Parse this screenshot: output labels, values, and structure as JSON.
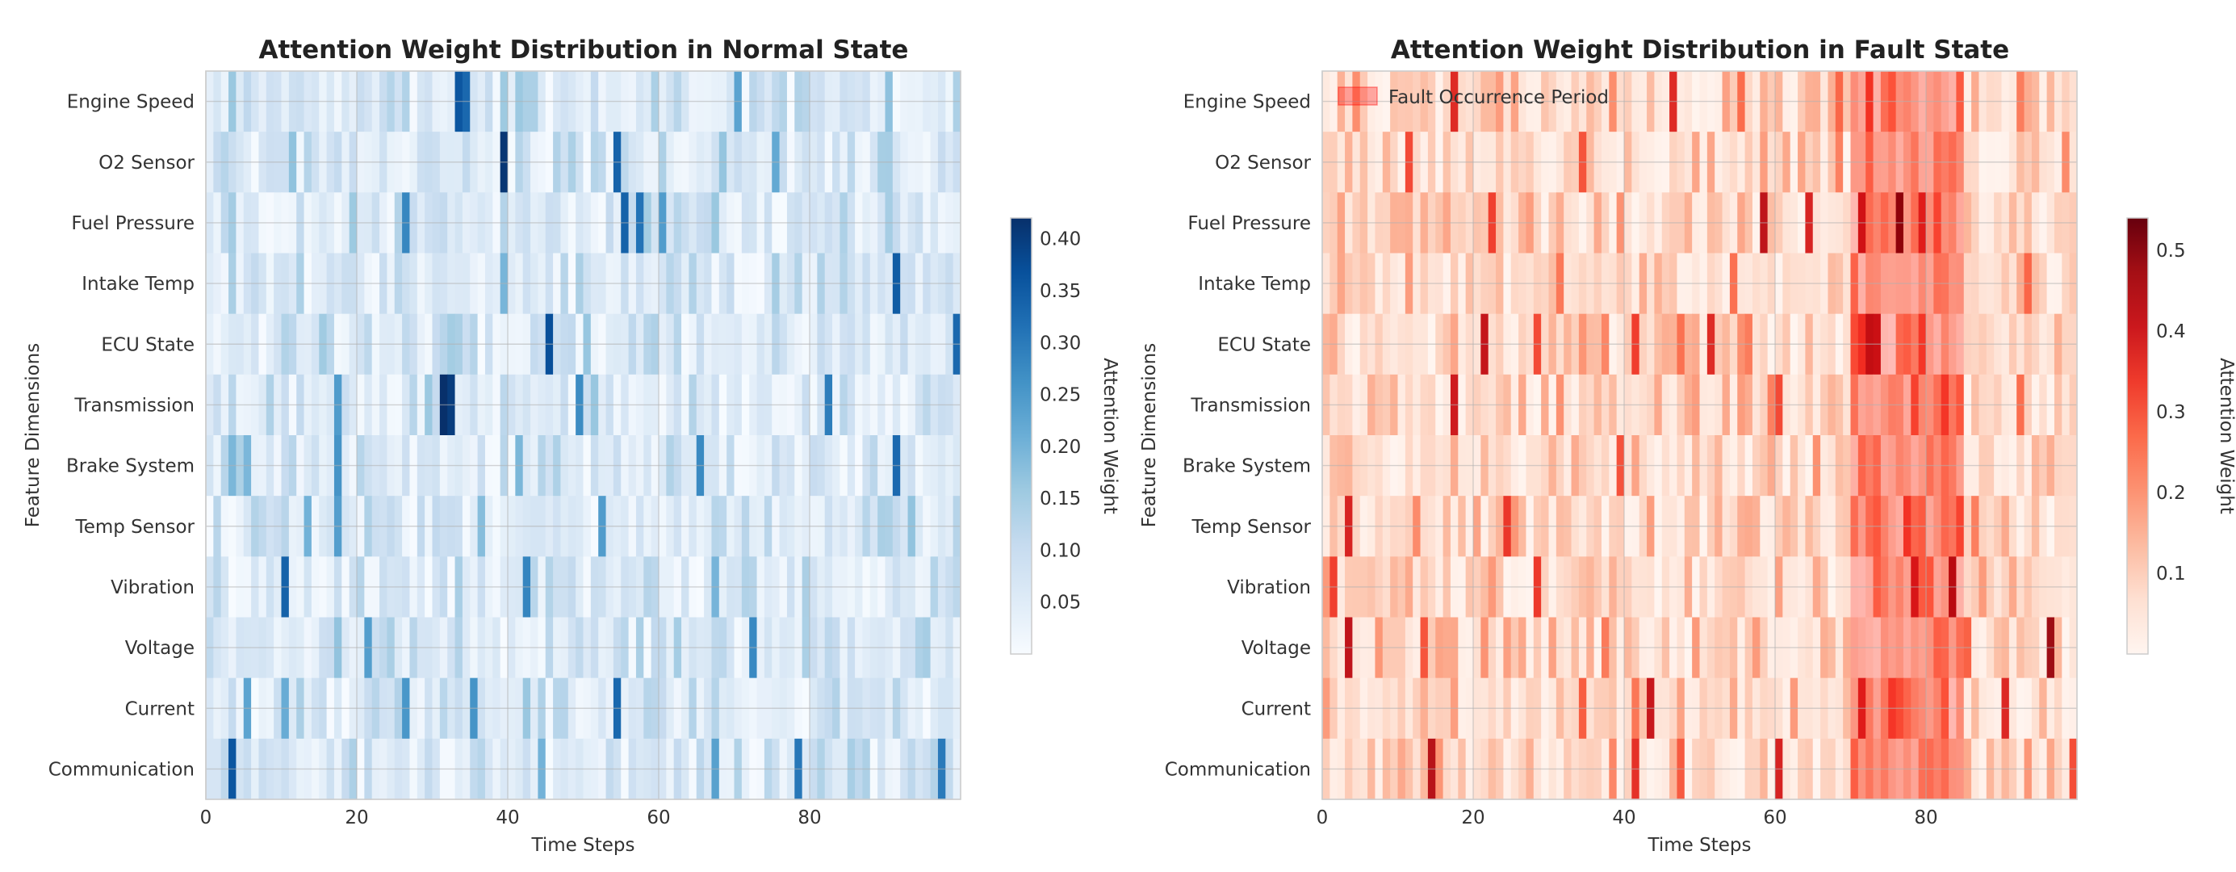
{
  "chart_data": [
    {
      "type": "heatmap",
      "title": "Attention Weight Distribution in Normal State",
      "xlabel": "Time Steps",
      "ylabel": "Feature Dimensions",
      "x_range": [
        0,
        100
      ],
      "x_ticks": [
        0,
        20,
        40,
        60,
        80
      ],
      "categories": [
        "Engine Speed",
        "O2 Sensor",
        "Fuel Pressure",
        "Intake Temp",
        "ECU State",
        "Transmission",
        "Brake System",
        "Temp Sensor",
        "Vibration",
        "Voltage",
        "Current",
        "Communication"
      ],
      "colormap": "Blues",
      "colorbar": {
        "label": "Attention Weight",
        "range": [
          0.0,
          0.42
        ],
        "ticks": [
          0.05,
          0.1,
          0.15,
          0.2,
          0.25,
          0.3,
          0.35,
          0.4
        ],
        "tick_labels": [
          "0.05",
          "0.10",
          "0.15",
          "0.20",
          "0.25",
          "0.30",
          "0.35",
          "0.40"
        ]
      },
      "color_stops": [
        "#f7fbff",
        "#deebf7",
        "#c6dbef",
        "#9ecae1",
        "#6baed6",
        "#4292c6",
        "#2171b5",
        "#08519c",
        "#08306b"
      ],
      "seed": 7,
      "base_level": 0.07,
      "hotspots": [
        {
          "row": 0,
          "col": 33,
          "value": 0.36
        },
        {
          "row": 0,
          "col": 34,
          "value": 0.33
        },
        {
          "row": 1,
          "col": 39,
          "value": 0.41
        },
        {
          "row": 2,
          "col": 55,
          "value": 0.34
        },
        {
          "row": 2,
          "col": 26,
          "value": 0.28
        },
        {
          "row": 3,
          "col": 91,
          "value": 0.35
        },
        {
          "row": 4,
          "col": 45,
          "value": 0.37
        },
        {
          "row": 4,
          "col": 99,
          "value": 0.33
        },
        {
          "row": 5,
          "col": 31,
          "value": 0.42
        },
        {
          "row": 5,
          "col": 32,
          "value": 0.4
        },
        {
          "row": 7,
          "col": 17,
          "value": 0.24
        },
        {
          "row": 8,
          "col": 10,
          "value": 0.34
        },
        {
          "row": 10,
          "col": 54,
          "value": 0.33
        },
        {
          "row": 11,
          "col": 3,
          "value": 0.36
        },
        {
          "row": 11,
          "col": 97,
          "value": 0.3
        }
      ]
    },
    {
      "type": "heatmap",
      "title": "Attention Weight Distribution in Fault State",
      "xlabel": "Time Steps",
      "ylabel": "Feature Dimensions",
      "x_range": [
        0,
        100
      ],
      "x_ticks": [
        0,
        20,
        40,
        60,
        80
      ],
      "categories": [
        "Engine Speed",
        "O2 Sensor",
        "Fuel Pressure",
        "Intake Temp",
        "ECU State",
        "Transmission",
        "Brake System",
        "Temp Sensor",
        "Vibration",
        "Voltage",
        "Current",
        "Communication"
      ],
      "colormap": "Reds",
      "colorbar": {
        "label": "Attention Weight",
        "range": [
          0.0,
          0.54
        ],
        "ticks": [
          0.1,
          0.2,
          0.3,
          0.4,
          0.5
        ],
        "tick_labels": [
          "0.1",
          "0.2",
          "0.3",
          "0.4",
          "0.5"
        ]
      },
      "color_stops": [
        "#fff5f0",
        "#fee0d2",
        "#fcbba1",
        "#fc9272",
        "#fb6a4a",
        "#ef3b2c",
        "#cb181d",
        "#a50f15",
        "#67000d"
      ],
      "seed": 13,
      "base_level": 0.09,
      "fault_period": {
        "start": 70,
        "end": 85,
        "label": "Fault Occurrence Period",
        "color": "#ff0000",
        "opacity": 0.22
      },
      "hotspots": [
        {
          "row": 2,
          "col": 76,
          "value": 0.53
        },
        {
          "row": 2,
          "col": 71,
          "value": 0.42
        },
        {
          "row": 4,
          "col": 72,
          "value": 0.45
        },
        {
          "row": 4,
          "col": 73,
          "value": 0.43
        },
        {
          "row": 8,
          "col": 83,
          "value": 0.47
        },
        {
          "row": 8,
          "col": 78,
          "value": 0.4
        },
        {
          "row": 9,
          "col": 96,
          "value": 0.48
        },
        {
          "row": 10,
          "col": 43,
          "value": 0.41
        },
        {
          "row": 11,
          "col": 14,
          "value": 0.44
        },
        {
          "row": 5,
          "col": 17,
          "value": 0.4
        }
      ]
    }
  ]
}
